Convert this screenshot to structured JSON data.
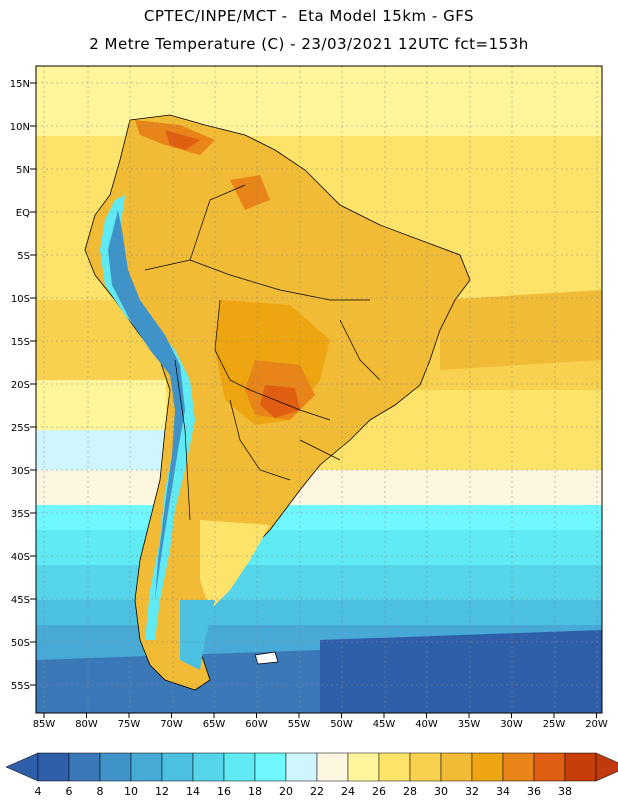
{
  "header": {
    "line1": "CPTEC/INPE/MCT -  Eta Model 15km - GFS",
    "line2": "2 Metre Temperature (C) - 23/03/2021 12UTC fct=153h"
  },
  "axes": {
    "lat_labels": [
      "15N",
      "10N",
      "5N",
      "EQ",
      "5S",
      "10S",
      "15S",
      "20S",
      "25S",
      "30S",
      "35S",
      "40S",
      "45S",
      "50S",
      "55S"
    ],
    "lon_labels": [
      "85W",
      "80W",
      "75W",
      "70W",
      "65W",
      "60W",
      "55W",
      "50W",
      "45W",
      "40W",
      "35W",
      "30W",
      "25W",
      "20W"
    ]
  },
  "colorbar": {
    "labels": [
      "4",
      "6",
      "8",
      "10",
      "12",
      "14",
      "16",
      "18",
      "20",
      "22",
      "24",
      "26",
      "28",
      "30",
      "32",
      "34",
      "36",
      "38"
    ],
    "colors": [
      "#2f5fa8",
      "#3a78b8",
      "#3f93c8",
      "#47a9d6",
      "#4cc0e0",
      "#55d4ea",
      "#5feaf4",
      "#6ff8ff",
      "#cff6ff",
      "#fdf6e0",
      "#fff59a",
      "#fde36a",
      "#f8d24e",
      "#f1bb36",
      "#eea512",
      "#e88418",
      "#df5e12",
      "#c83e0a"
    ],
    "low_color": "#2f5fa8",
    "high_color": "#c03a10"
  }
}
